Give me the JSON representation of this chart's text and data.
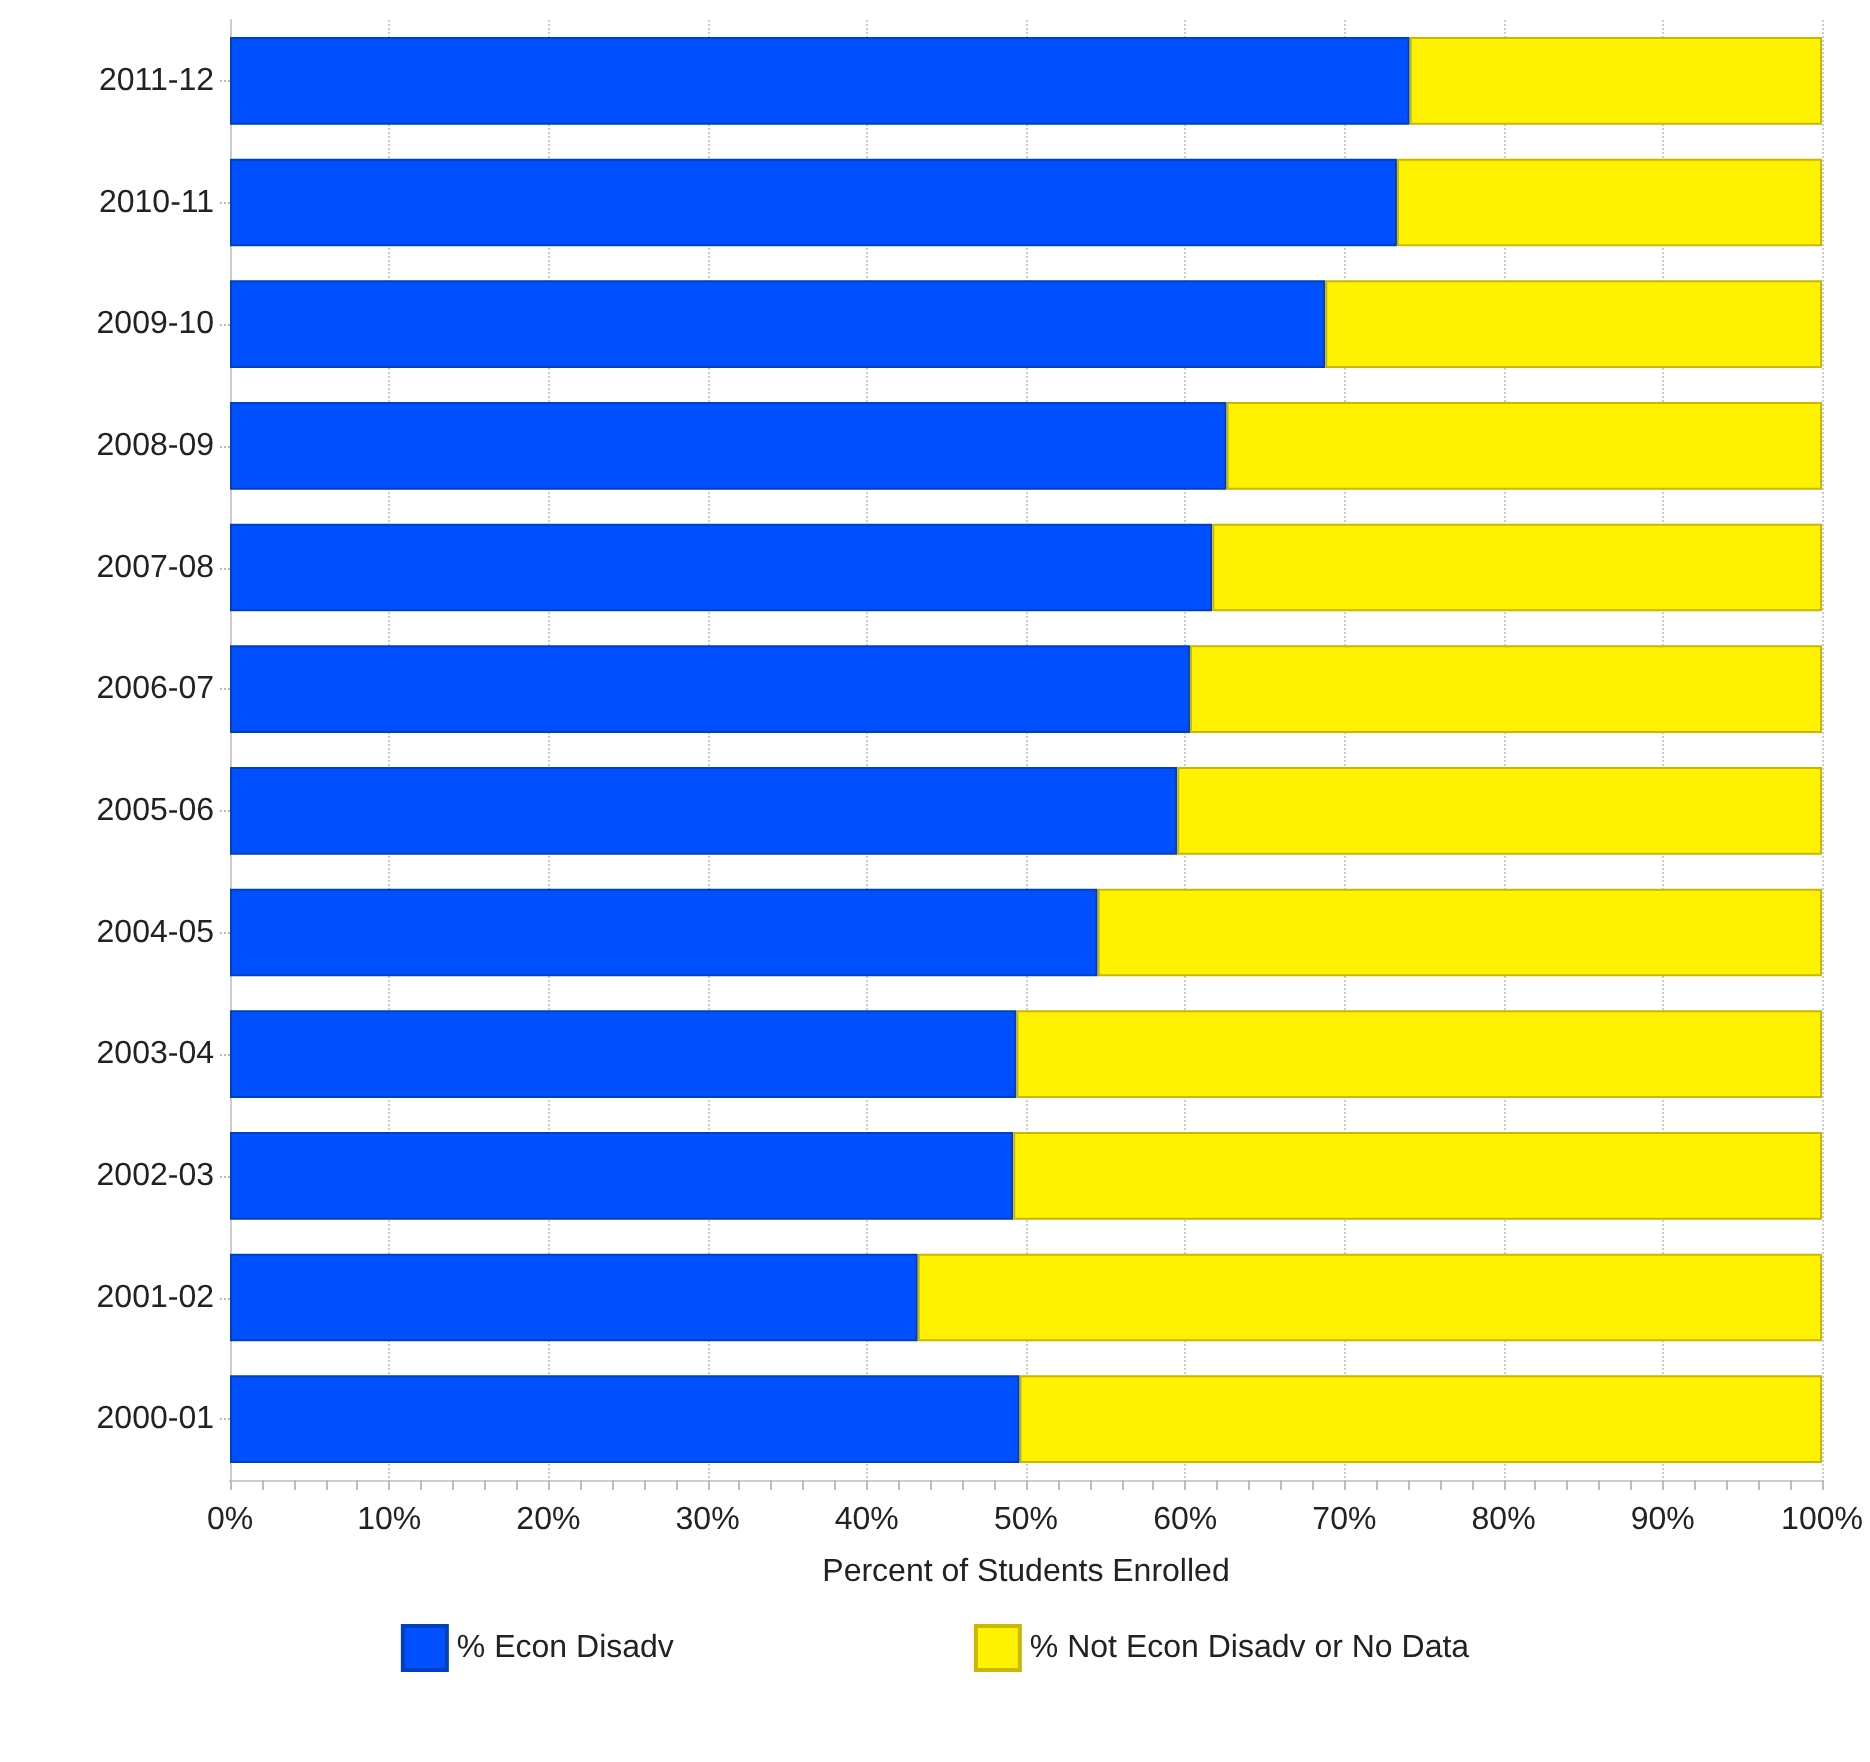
{
  "chart_data": {
    "type": "bar",
    "orientation": "horizontal",
    "stacked": true,
    "xlabel": "Percent of Students Enrolled",
    "categories": [
      "2011-12",
      "2010-11",
      "2009-10",
      "2008-09",
      "2007-08",
      "2006-07",
      "2005-06",
      "2004-05",
      "2003-04",
      "2002-03",
      "2001-02",
      "2000-01"
    ],
    "series": [
      {
        "name": "% Econ Disadv",
        "color": "#0050ff",
        "values": [
          74.1,
          73.3,
          68.8,
          62.6,
          61.7,
          60.3,
          59.5,
          54.5,
          49.4,
          49.2,
          43.2,
          49.6
        ]
      },
      {
        "name": "% Not Econ Disadv or No Data",
        "color": "#fff200",
        "values": [
          25.9,
          26.7,
          31.2,
          37.4,
          38.3,
          39.7,
          40.5,
          45.5,
          50.6,
          50.8,
          56.8,
          50.4
        ]
      }
    ],
    "xlim": [
      0,
      100
    ],
    "xticks": [
      {
        "value": 0,
        "label": "0%"
      },
      {
        "value": 2,
        "label": null
      },
      {
        "value": 4,
        "label": null
      },
      {
        "value": 6,
        "label": null
      },
      {
        "value": 8,
        "label": null
      },
      {
        "value": 10,
        "label": "10%"
      },
      {
        "value": 12,
        "label": null
      },
      {
        "value": 14,
        "label": null
      },
      {
        "value": 16,
        "label": null
      },
      {
        "value": 18,
        "label": null
      },
      {
        "value": 20,
        "label": "20%"
      },
      {
        "value": 22,
        "label": null
      },
      {
        "value": 24,
        "label": null
      },
      {
        "value": 26,
        "label": null
      },
      {
        "value": 28,
        "label": null
      },
      {
        "value": 30,
        "label": "30%"
      },
      {
        "value": 32,
        "label": null
      },
      {
        "value": 34,
        "label": null
      },
      {
        "value": 36,
        "label": null
      },
      {
        "value": 38,
        "label": null
      },
      {
        "value": 40,
        "label": "40%"
      },
      {
        "value": 42,
        "label": null
      },
      {
        "value": 44,
        "label": null
      },
      {
        "value": 46,
        "label": null
      },
      {
        "value": 48,
        "label": null
      },
      {
        "value": 50,
        "label": "50%"
      },
      {
        "value": 52,
        "label": null
      },
      {
        "value": 54,
        "label": null
      },
      {
        "value": 56,
        "label": null
      },
      {
        "value": 58,
        "label": null
      },
      {
        "value": 60,
        "label": "60%"
      },
      {
        "value": 62,
        "label": null
      },
      {
        "value": 64,
        "label": null
      },
      {
        "value": 66,
        "label": null
      },
      {
        "value": 68,
        "label": null
      },
      {
        "value": 70,
        "label": "70%"
      },
      {
        "value": 72,
        "label": null
      },
      {
        "value": 74,
        "label": null
      },
      {
        "value": 76,
        "label": null
      },
      {
        "value": 78,
        "label": null
      },
      {
        "value": 80,
        "label": "80%"
      },
      {
        "value": 82,
        "label": null
      },
      {
        "value": 84,
        "label": null
      },
      {
        "value": 86,
        "label": null
      },
      {
        "value": 88,
        "label": null
      },
      {
        "value": 90,
        "label": "90%"
      },
      {
        "value": 92,
        "label": null
      },
      {
        "value": 94,
        "label": null
      },
      {
        "value": 96,
        "label": null
      },
      {
        "value": 98,
        "label": null
      },
      {
        "value": 100,
        "label": "100%"
      }
    ],
    "grid": "x",
    "legend": "bottom"
  }
}
